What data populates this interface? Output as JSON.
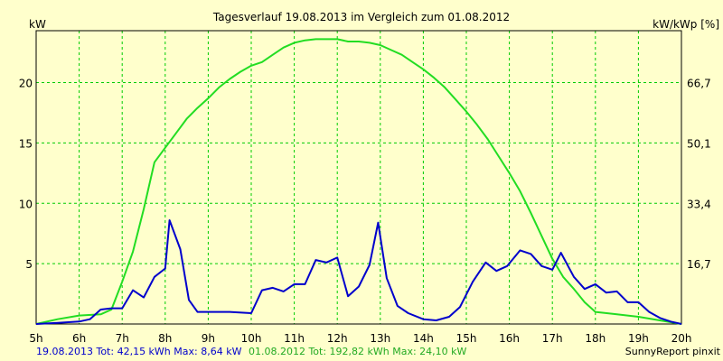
{
  "chart_data": {
    "type": "line",
    "title": "Tagesverlauf 19.08.2013 im Vergleich zum 01.08.2012",
    "ylabel_left": "kW",
    "ylabel_right": "kW/kWp [%]",
    "x_ticks": [
      "5h",
      "6h",
      "7h",
      "8h",
      "9h",
      "10h",
      "11h",
      "12h",
      "13h",
      "14h",
      "15h",
      "16h",
      "17h",
      "18h",
      "19h",
      "20h"
    ],
    "x_range": [
      5,
      20
    ],
    "y_ticks_left": [
      "5",
      "10",
      "15",
      "20"
    ],
    "y_tick_values_left": [
      5,
      10,
      15,
      20
    ],
    "y_ticks_right": [
      "16,7",
      "33,4",
      "50,1",
      "66,7"
    ],
    "ylim": [
      0,
      24.3
    ],
    "grid": true,
    "background_color": "#ffffcc",
    "grid_color": "#00cc00",
    "series": [
      {
        "name": "19.08.2013",
        "color": "#0000cc",
        "x": [
          5.0,
          5.5,
          6.0,
          6.25,
          6.5,
          6.75,
          7.0,
          7.25,
          7.5,
          7.75,
          8.0,
          8.1,
          8.35,
          8.55,
          8.75,
          9.0,
          9.5,
          10.0,
          10.25,
          10.5,
          10.75,
          11.0,
          11.25,
          11.5,
          11.75,
          12.0,
          12.25,
          12.5,
          12.75,
          12.95,
          13.15,
          13.4,
          13.65,
          14.0,
          14.3,
          14.6,
          14.85,
          15.15,
          15.45,
          15.7,
          15.95,
          16.25,
          16.5,
          16.75,
          17.0,
          17.2,
          17.5,
          17.75,
          18.0,
          18.25,
          18.5,
          18.75,
          19.0,
          19.25,
          19.5,
          19.75,
          20.0
        ],
        "y": [
          0.0,
          0.1,
          0.2,
          0.4,
          1.2,
          1.3,
          1.3,
          2.8,
          2.2,
          3.9,
          4.6,
          8.6,
          6.2,
          2.0,
          1.0,
          1.0,
          1.0,
          0.9,
          2.8,
          3.0,
          2.7,
          3.3,
          3.3,
          5.3,
          5.1,
          5.5,
          2.3,
          3.1,
          4.9,
          8.4,
          3.8,
          1.5,
          0.9,
          0.4,
          0.3,
          0.6,
          1.4,
          3.5,
          5.1,
          4.4,
          4.8,
          6.1,
          5.8,
          4.8,
          4.5,
          5.9,
          3.9,
          2.9,
          3.3,
          2.6,
          2.7,
          1.8,
          1.8,
          1.0,
          0.5,
          0.2,
          0.0
        ]
      },
      {
        "name": "01.08.2012",
        "color": "#22dd22",
        "x": [
          5.0,
          5.5,
          6.0,
          6.5,
          6.75,
          7.0,
          7.25,
          7.5,
          7.75,
          8.0,
          8.25,
          8.5,
          8.75,
          9.0,
          9.25,
          9.5,
          9.75,
          10.0,
          10.25,
          10.5,
          10.75,
          11.0,
          11.25,
          11.5,
          11.75,
          12.0,
          12.25,
          12.5,
          12.75,
          13.0,
          13.25,
          13.5,
          13.75,
          14.0,
          14.25,
          14.5,
          14.75,
          15.0,
          15.25,
          15.5,
          15.75,
          16.0,
          16.25,
          16.5,
          16.75,
          17.0,
          17.25,
          17.5,
          17.75,
          18.0,
          18.5,
          19.0,
          19.5,
          20.0
        ],
        "y": [
          0.0,
          0.4,
          0.7,
          0.8,
          1.2,
          3.5,
          6.0,
          9.5,
          13.4,
          14.6,
          15.8,
          17.0,
          17.9,
          18.7,
          19.6,
          20.3,
          20.9,
          21.4,
          21.7,
          22.3,
          22.9,
          23.3,
          23.5,
          23.6,
          23.6,
          23.6,
          23.4,
          23.4,
          23.3,
          23.1,
          22.7,
          22.3,
          21.7,
          21.1,
          20.4,
          19.6,
          18.6,
          17.6,
          16.5,
          15.3,
          13.9,
          12.5,
          11.0,
          9.2,
          7.3,
          5.4,
          3.9,
          2.9,
          1.8,
          1.0,
          0.8,
          0.6,
          0.3,
          0.0
        ]
      }
    ]
  },
  "footer": {
    "blue_text": "19.08.2013 Tot: 42,15 kWh Max: 8,64 kW",
    "green_text": "01.08.2012 Tot: 192,82 kWh Max: 24,10 kW",
    "credit": "SunnyReport pinxit"
  }
}
